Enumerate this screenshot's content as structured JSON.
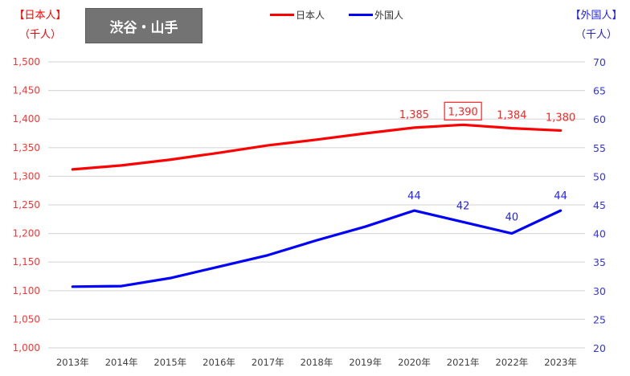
{
  "title": "渋谷・山手",
  "left_axis_title": [
    "【日本人】",
    "（千人）"
  ],
  "right_axis_title": [
    "【外国人】",
    "（千人）"
  ],
  "colors": {
    "japanese": "#ff0000",
    "foreign": "#0000ff",
    "grid": "#d9d9d9",
    "title_bg": "#737373"
  },
  "chart_data": {
    "type": "line",
    "title": "渋谷・山手",
    "categories": [
      "2013年",
      "2014年",
      "2015年",
      "2016年",
      "2017年",
      "2018年",
      "2019年",
      "2020年",
      "2021年",
      "2022年",
      "2023年"
    ],
    "series": [
      {
        "name": "日本人",
        "axis": "left",
        "values": [
          1312,
          1319,
          1329,
          1341,
          1354,
          1364,
          1375,
          1385,
          1390,
          1384,
          1380
        ],
        "labels": [
          null,
          null,
          null,
          null,
          null,
          null,
          null,
          "1,385",
          "1,390",
          "1,384",
          "1,380"
        ],
        "highlight_index": 8
      },
      {
        "name": "外国人",
        "axis": "right",
        "values": [
          30.7,
          30.8,
          32.2,
          34.2,
          36.2,
          38.8,
          41.2,
          44,
          42,
          40,
          44
        ],
        "labels": [
          null,
          null,
          null,
          null,
          null,
          null,
          null,
          "44",
          "42",
          "40",
          "44"
        ]
      }
    ],
    "y_left": {
      "label": "【日本人】（千人）",
      "range": [
        1000,
        1500
      ],
      "ticks": [
        "1,000",
        "1,050",
        "1,100",
        "1,150",
        "1,200",
        "1,250",
        "1,300",
        "1,350",
        "1,400",
        "1,450",
        "1,500"
      ]
    },
    "y_right": {
      "label": "【外国人】（千人）",
      "range": [
        20,
        70
      ],
      "ticks": [
        "20",
        "25",
        "30",
        "35",
        "40",
        "45",
        "50",
        "55",
        "60",
        "65",
        "70"
      ]
    },
    "grid": true,
    "legend": "top-center"
  }
}
